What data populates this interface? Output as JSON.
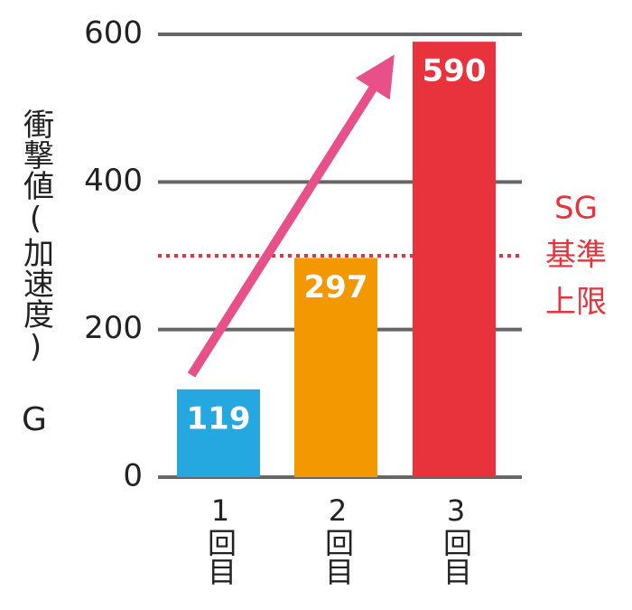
{
  "chart_data": {
    "type": "bar",
    "y_label": "衝撃値(加速度)",
    "y_unit": "G",
    "categories": [
      "1回目",
      "2回目",
      "3回目"
    ],
    "values": [
      119,
      297,
      590
    ],
    "colors": [
      "#25a8e0",
      "#f39800",
      "#e8323c"
    ],
    "ylim": [
      0,
      600
    ],
    "yticks": [
      0,
      200,
      400,
      600
    ],
    "grid": true,
    "reference": {
      "value": 300,
      "color": "#e8323c",
      "label_lines": [
        "SG",
        "基準",
        "上限"
      ]
    }
  }
}
